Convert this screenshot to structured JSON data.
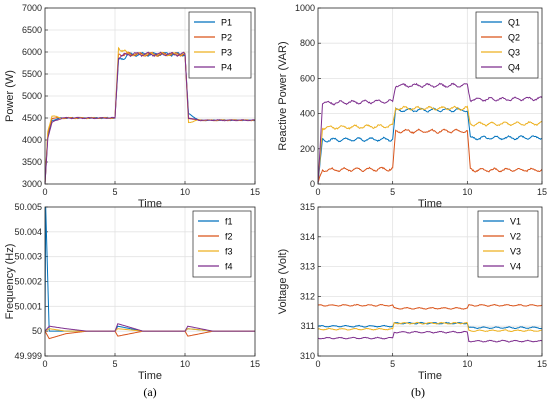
{
  "colors": [
    "#0072BD",
    "#D95319",
    "#EDB120",
    "#7E2F8E"
  ],
  "chart_data": [
    {
      "panel": "(a)",
      "type": "line",
      "xlabel": "Time",
      "ylabel": "Power (W)",
      "xlim": [
        0,
        15
      ],
      "ylim": [
        3000,
        7000
      ],
      "xticks": [
        "0",
        "5",
        "10",
        "15"
      ],
      "yticks": [
        "3000",
        "3500",
        "4000",
        "4500",
        "5000",
        "5500",
        "6000",
        "6500",
        "7000"
      ],
      "grid": true,
      "legend": "top-right",
      "series": [
        {
          "name": "P1",
          "values": [
            [
              0,
              3000
            ],
            [
              0.2,
              4100
            ],
            [
              0.5,
              4450
            ],
            [
              1.2,
              4500
            ],
            [
              5,
              4500
            ],
            [
              5.25,
              5800
            ],
            [
              6,
              5950
            ],
            [
              10,
              5950
            ],
            [
              10.25,
              4600
            ],
            [
              11,
              4450
            ],
            [
              15,
              4450
            ]
          ]
        },
        {
          "name": "P2",
          "values": [
            [
              0,
              3000
            ],
            [
              0.2,
              4150
            ],
            [
              0.5,
              4500
            ],
            [
              1.2,
              4500
            ],
            [
              5,
              4500
            ],
            [
              5.25,
              5950
            ],
            [
              6,
              5950
            ],
            [
              10,
              5950
            ],
            [
              10.25,
              4500
            ],
            [
              11,
              4450
            ],
            [
              15,
              4450
            ]
          ]
        },
        {
          "name": "P3",
          "values": [
            [
              0,
              3000
            ],
            [
              0.2,
              4200
            ],
            [
              0.5,
              4550
            ],
            [
              1.2,
              4500
            ],
            [
              5,
              4500
            ],
            [
              5.25,
              6100
            ],
            [
              6,
              5950
            ],
            [
              10,
              5950
            ],
            [
              10.25,
              4400
            ],
            [
              11,
              4450
            ],
            [
              15,
              4450
            ]
          ]
        },
        {
          "name": "P4",
          "values": [
            [
              0,
              3000
            ],
            [
              0.2,
              4050
            ],
            [
              0.5,
              4400
            ],
            [
              1.2,
              4500
            ],
            [
              5,
              4500
            ],
            [
              5.25,
              5900
            ],
            [
              6,
              5950
            ],
            [
              10,
              5950
            ],
            [
              10.25,
              4500
            ],
            [
              11,
              4450
            ],
            [
              15,
              4450
            ]
          ]
        }
      ]
    },
    {
      "panel": "(a)",
      "type": "line",
      "xlabel": "Time",
      "ylabel": "Frequency (Hz)",
      "xlim": [
        0,
        15
      ],
      "ylim": [
        49.999,
        50.005
      ],
      "xticks": [
        "0",
        "5",
        "10",
        "15"
      ],
      "yticks": [
        "49.999",
        "50",
        "50.001",
        "50.002",
        "50.003",
        "50.004",
        "50.005"
      ],
      "grid": true,
      "legend": "top-right",
      "series": [
        {
          "name": "f1",
          "values": [
            [
              0,
              50.0
            ],
            [
              0.05,
              50.005
            ],
            [
              0.3,
              50.0
            ],
            [
              5,
              50.0
            ],
            [
              5.2,
              50.0002
            ],
            [
              7,
              50.0
            ],
            [
              10,
              50.0
            ],
            [
              10.2,
              50.0001
            ],
            [
              12,
              50.0
            ],
            [
              15,
              50.0
            ]
          ]
        },
        {
          "name": "f2",
          "values": [
            [
              0,
              50.0
            ],
            [
              0.3,
              49.9997
            ],
            [
              1.5,
              49.9999
            ],
            [
              3,
              50.0
            ],
            [
              5,
              50.0
            ],
            [
              5.2,
              49.9998
            ],
            [
              7,
              50.0
            ],
            [
              10,
              50.0
            ],
            [
              10.2,
              49.9998
            ],
            [
              12,
              50.0
            ],
            [
              15,
              50.0
            ]
          ]
        },
        {
          "name": "f3",
          "values": [
            [
              0,
              50.0
            ],
            [
              0.3,
              50.0001
            ],
            [
              1.5,
              50.0
            ],
            [
              5,
              50.0
            ],
            [
              5.2,
              50.0001
            ],
            [
              7,
              50.0
            ],
            [
              10,
              50.0
            ],
            [
              10.2,
              50.0001
            ],
            [
              12,
              50.0
            ],
            [
              15,
              50.0
            ]
          ]
        },
        {
          "name": "f4",
          "values": [
            [
              0,
              50.0
            ],
            [
              0.3,
              50.0002
            ],
            [
              1.5,
              50.0001
            ],
            [
              3,
              50.0
            ],
            [
              5,
              50.0
            ],
            [
              5.2,
              50.0003
            ],
            [
              7,
              50.0
            ],
            [
              10,
              50.0
            ],
            [
              10.2,
              50.0002
            ],
            [
              12,
              50.0
            ],
            [
              15,
              50.0
            ]
          ]
        }
      ]
    },
    {
      "panel": "(b)",
      "type": "line",
      "xlabel": "Time",
      "ylabel": "Reactive Power (VAR)",
      "xlim": [
        0,
        15
      ],
      "ylim": [
        0,
        1000
      ],
      "xticks": [
        "0",
        "5",
        "10",
        "15"
      ],
      "yticks": [
        "0",
        "200",
        "400",
        "600",
        "800",
        "1000"
      ],
      "grid": true,
      "legend": "top-right",
      "series": [
        {
          "name": "Q1",
          "values": [
            [
              0,
              0
            ],
            [
              0.3,
              250
            ],
            [
              5,
              255
            ],
            [
              5.2,
              420
            ],
            [
              10,
              420
            ],
            [
              10.2,
              260
            ],
            [
              15,
              265
            ]
          ]
        },
        {
          "name": "Q2",
          "values": [
            [
              0,
              0
            ],
            [
              0.3,
              80
            ],
            [
              5,
              85
            ],
            [
              5.2,
              300
            ],
            [
              10,
              300
            ],
            [
              10.2,
              80
            ],
            [
              15,
              80
            ]
          ]
        },
        {
          "name": "Q3",
          "values": [
            [
              0,
              0
            ],
            [
              0.3,
              320
            ],
            [
              5,
              330
            ],
            [
              5.2,
              430
            ],
            [
              10,
              430
            ],
            [
              10.2,
              340
            ],
            [
              15,
              345
            ]
          ]
        },
        {
          "name": "Q4",
          "values": [
            [
              0,
              0
            ],
            [
              0.3,
              460
            ],
            [
              5,
              470
            ],
            [
              5.2,
              560
            ],
            [
              10,
              560
            ],
            [
              10.2,
              480
            ],
            [
              15,
              485
            ]
          ]
        }
      ]
    },
    {
      "panel": "(b)",
      "type": "line",
      "xlabel": "Time",
      "ylabel": "Voltage (Volt)",
      "xlim": [
        0,
        15
      ],
      "ylim": [
        310,
        315
      ],
      "xticks": [
        "0",
        "5",
        "10",
        "15"
      ],
      "yticks": [
        "310",
        "311",
        "312",
        "313",
        "314",
        "315"
      ],
      "grid": true,
      "legend": "top-right",
      "series": [
        {
          "name": "V1",
          "values": [
            [
              0,
              311.0
            ],
            [
              5,
              311.0
            ],
            [
              5.1,
              311.1
            ],
            [
              10,
              311.1
            ],
            [
              10.1,
              310.95
            ],
            [
              15,
              310.95
            ]
          ]
        },
        {
          "name": "V2",
          "values": [
            [
              0,
              311.7
            ],
            [
              5,
              311.7
            ],
            [
              5.1,
              311.6
            ],
            [
              10,
              311.6
            ],
            [
              10.1,
              311.7
            ],
            [
              15,
              311.7
            ]
          ]
        },
        {
          "name": "V3",
          "values": [
            [
              0,
              310.9
            ],
            [
              5,
              310.9
            ],
            [
              5.1,
              311.1
            ],
            [
              10,
              311.1
            ],
            [
              10.1,
              310.85
            ],
            [
              15,
              310.85
            ]
          ]
        },
        {
          "name": "V4",
          "values": [
            [
              0,
              310.6
            ],
            [
              5,
              310.6
            ],
            [
              5.1,
              310.8
            ],
            [
              10,
              310.8
            ],
            [
              10.1,
              310.5
            ],
            [
              15,
              310.5
            ]
          ]
        }
      ]
    }
  ],
  "captions": [
    "(a)",
    "(b)"
  ]
}
